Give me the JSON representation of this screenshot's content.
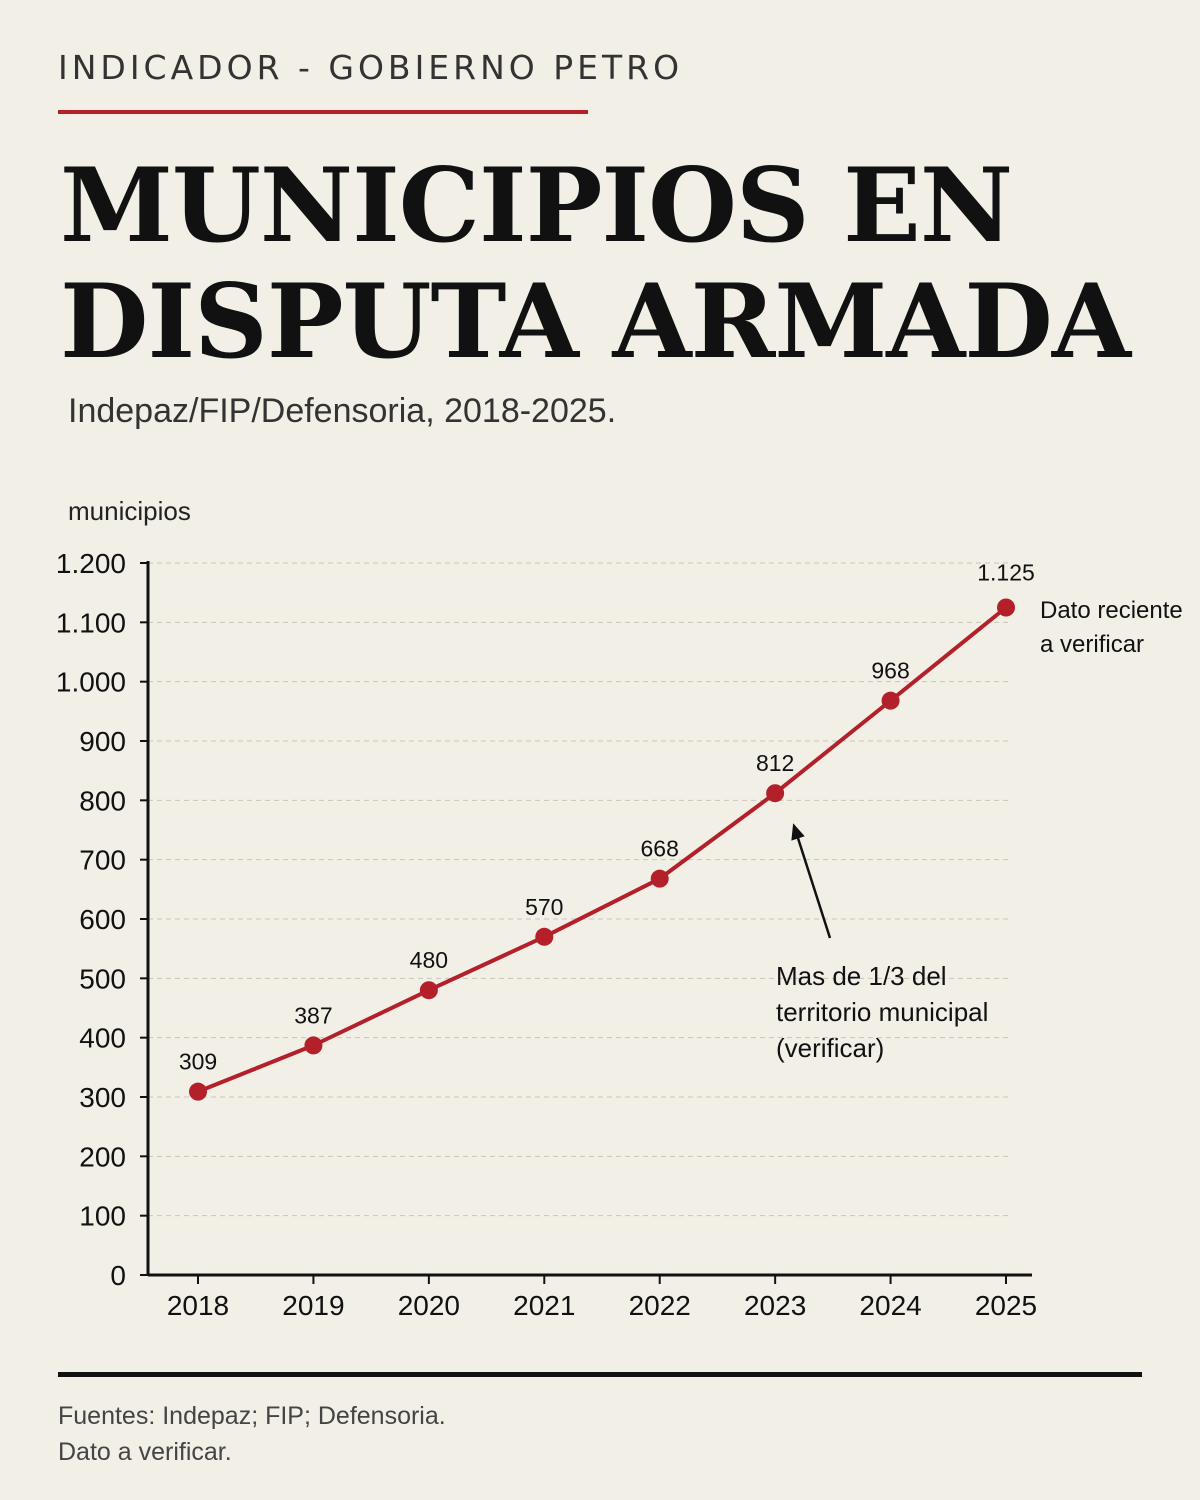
{
  "header": {
    "kicker": "INDICADOR - GOBIERNO PETRO",
    "title_line1": "MUNICIPIOS EN",
    "title_line2": "DISPUTA ARMADA",
    "subtitle": "Indepaz/FIP/Defensoria, 2018-2025."
  },
  "colors": {
    "accent": "#b3202a",
    "background": "#f2efe6",
    "grid": "#c9c5ba",
    "axis": "#111111"
  },
  "chart_data": {
    "type": "line",
    "ylabel": "municipios",
    "x": [
      "2018",
      "2019",
      "2020",
      "2021",
      "2022",
      "2023",
      "2024",
      "2025"
    ],
    "series": [
      {
        "values": [
          309,
          387,
          480,
          570,
          668,
          812,
          968,
          1125
        ],
        "data_labels": [
          "309",
          "387",
          "480",
          "570",
          "668",
          "812",
          "968",
          "1.125"
        ]
      }
    ],
    "ylim": [
      0,
      1200
    ],
    "y_ticks": [
      0,
      100,
      200,
      300,
      400,
      500,
      600,
      700,
      800,
      900,
      1000,
      1100,
      1200
    ],
    "y_tick_labels": [
      "0",
      "100",
      "200",
      "300",
      "400",
      "500",
      "600",
      "700",
      "800",
      "900",
      "1.000",
      "1.100",
      "1.200"
    ],
    "grid": "horizontal dashed",
    "annotations": [
      {
        "target_x": "2023",
        "lines": [
          "Mas de 1/3 del",
          "territorio municipal",
          "(verificar)"
        ],
        "arrow": true
      },
      {
        "target_x": "2025",
        "lines": [
          "Dato reciente",
          "a verificar"
        ],
        "arrow": false
      }
    ]
  },
  "footer": {
    "sources": "Fuentes: Indepaz; FIP; Defensoria.",
    "note": "Dato a verificar."
  }
}
